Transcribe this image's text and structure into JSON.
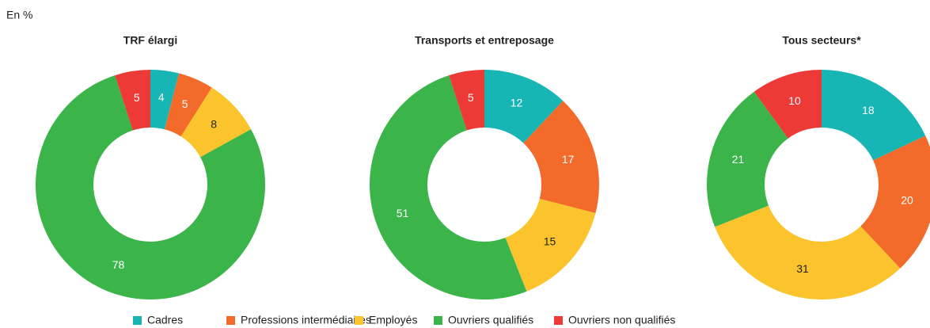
{
  "unit": "En %",
  "chart_data": [
    {
      "type": "pie",
      "title": "TRF élargi",
      "categories": [
        "Cadres",
        "Professions intermédiaires",
        "Employés",
        "Ouvriers qualifiés",
        "Ouvriers non qualifiés"
      ],
      "colors": [
        "#17b5b4",
        "#f26b2a",
        "#fcc42c",
        "#3bb54a",
        "#ee3a36"
      ],
      "values": [
        4,
        5,
        8,
        78,
        5
      ]
    },
    {
      "type": "pie",
      "title": "Transports et entreposage",
      "categories": [
        "Cadres",
        "Professions intermédiaires",
        "Employés",
        "Ouvriers qualifiés",
        "Ouvriers non qualifiés"
      ],
      "colors": [
        "#17b5b4",
        "#f26b2a",
        "#fcc42c",
        "#3bb54a",
        "#ee3a36"
      ],
      "values": [
        12,
        17,
        15,
        51,
        5
      ]
    },
    {
      "type": "pie",
      "title": "Tous secteurs*",
      "categories": [
        "Cadres",
        "Professions intermédiaires",
        "Employés",
        "Ouvriers qualifiés",
        "Ouvriers non qualifiés"
      ],
      "colors": [
        "#17b5b4",
        "#f26b2a",
        "#fcc42c",
        "#3bb54a",
        "#ee3a36"
      ],
      "values": [
        18,
        20,
        31,
        21,
        10
      ]
    }
  ]
}
